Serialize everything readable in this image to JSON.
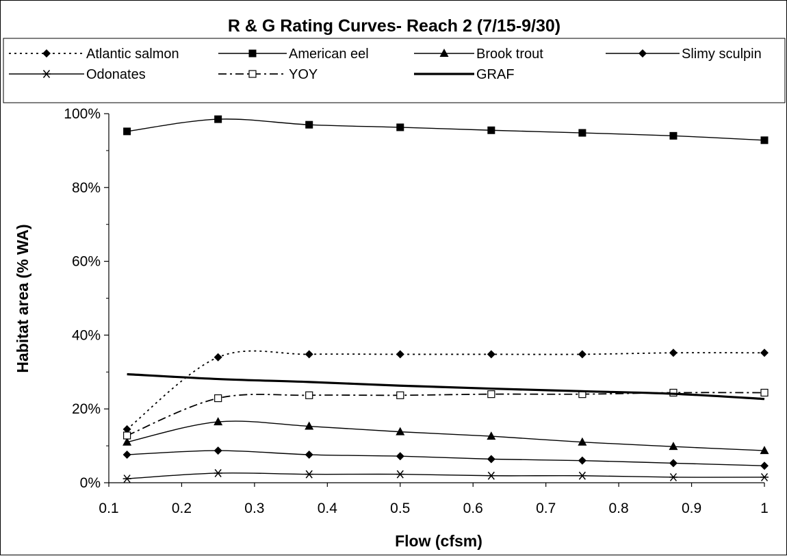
{
  "chart_data": {
    "type": "line",
    "title": "R & G Rating Curves- Reach 2 (7/15-9/30)",
    "xlabel": "Flow (cfsm)",
    "ylabel": "Habitat area (% WA)",
    "xlim": [
      0.1,
      1.0
    ],
    "ylim": [
      0,
      100
    ],
    "x_ticks": [
      "0.1",
      "0.2",
      "0.3",
      "0.4",
      "0.5",
      "0.6",
      "0.7",
      "0.8",
      "0.9",
      "1"
    ],
    "y_ticks": [
      "0%",
      "20%",
      "40%",
      "60%",
      "80%",
      "100%"
    ],
    "legend_position": "top",
    "grid": false,
    "x": [
      0.125,
      0.25,
      0.375,
      0.5,
      0.625,
      0.75,
      0.875,
      1.0
    ],
    "series": [
      {
        "name": "Atlantic salmon",
        "style": "dotted",
        "marker": "diamond",
        "color": "#000000",
        "values": [
          14.5,
          34.0,
          34.8,
          34.8,
          34.8,
          34.8,
          35.2,
          35.2
        ]
      },
      {
        "name": "American eel",
        "style": "solid",
        "marker": "square",
        "color": "#000000",
        "values": [
          95.2,
          98.5,
          97.0,
          96.3,
          95.5,
          94.8,
          94.0,
          92.8
        ]
      },
      {
        "name": "Brook trout",
        "style": "solid",
        "marker": "triangle",
        "color": "#000000",
        "values": [
          11.0,
          16.5,
          15.3,
          13.8,
          12.6,
          11.0,
          9.8,
          8.7
        ]
      },
      {
        "name": "Slimy sculpin",
        "style": "solid",
        "marker": "diamond",
        "color": "#000000",
        "values": [
          7.6,
          8.7,
          7.6,
          7.2,
          6.4,
          6.0,
          5.3,
          4.6
        ]
      },
      {
        "name": "Odonates",
        "style": "solid",
        "marker": "asterisk",
        "color": "#000000",
        "values": [
          1.1,
          2.6,
          2.3,
          2.3,
          1.9,
          1.9,
          1.5,
          1.5
        ]
      },
      {
        "name": "YOY",
        "style": "dashdot",
        "marker": "open-square",
        "color": "#000000",
        "values": [
          12.8,
          22.9,
          23.7,
          23.7,
          24.0,
          24.0,
          24.4,
          24.4
        ]
      },
      {
        "name": "GRAF",
        "style": "bold",
        "marker": "none",
        "color": "#000000",
        "values": [
          29.4,
          28.1,
          27.3,
          26.3,
          25.5,
          24.8,
          24.1,
          22.7
        ]
      }
    ]
  }
}
